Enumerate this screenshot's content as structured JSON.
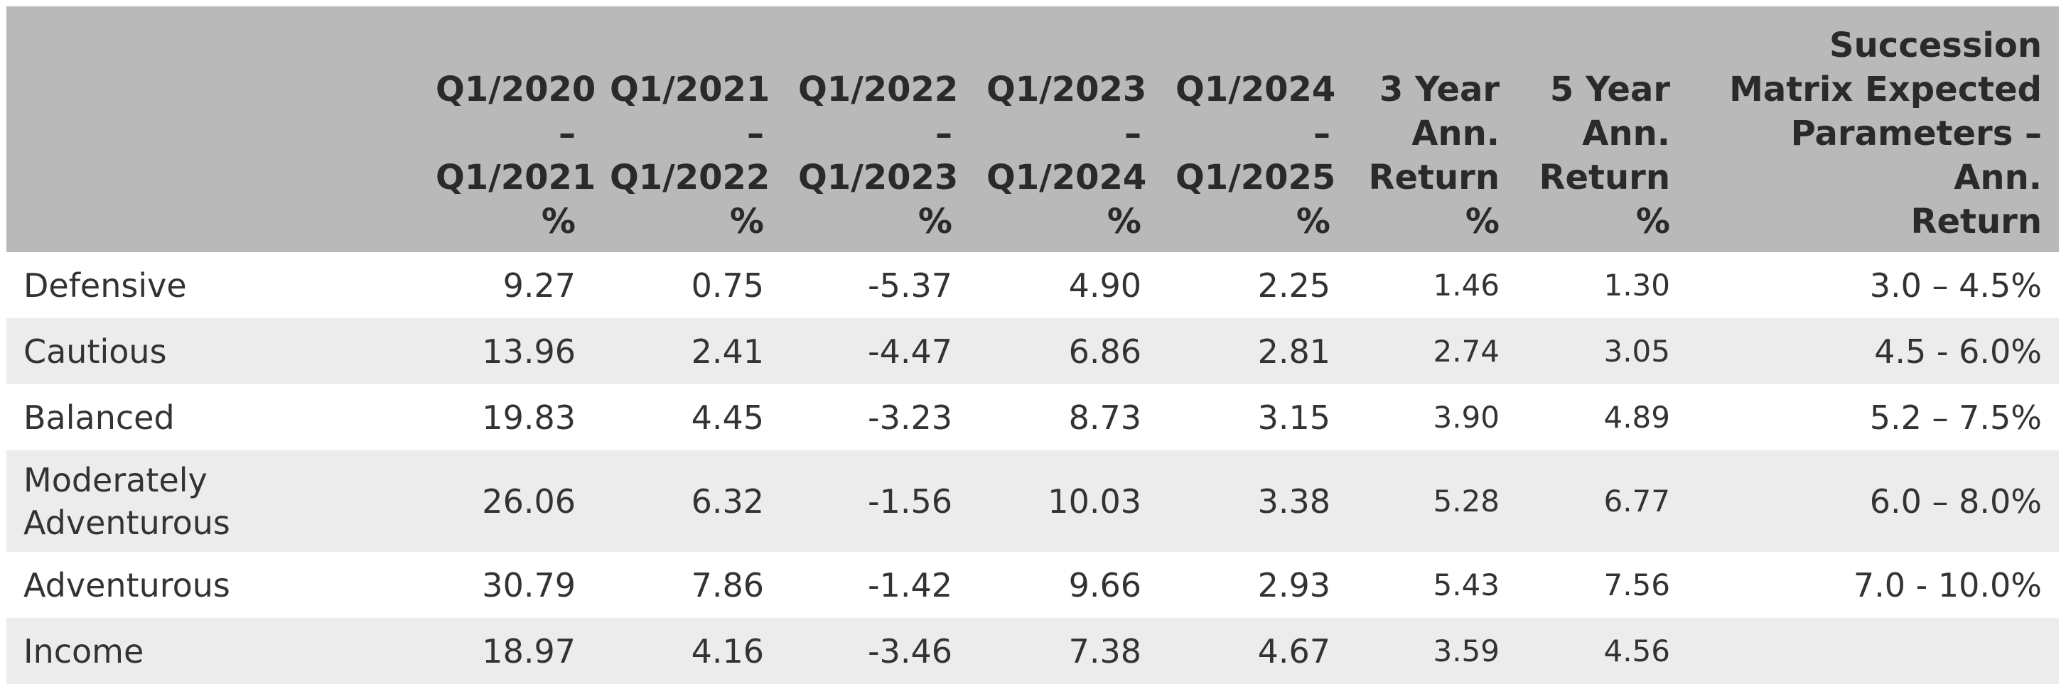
{
  "table": {
    "header": [
      [],
      [
        "Q1/2020",
        "–",
        "Q1/2021",
        "%"
      ],
      [
        "Q1/2021",
        "–",
        "Q1/2022",
        "%"
      ],
      [
        "Q1/2022",
        "–",
        "Q1/2023",
        "%"
      ],
      [
        "Q1/2023",
        "–",
        "Q1/2024",
        "%"
      ],
      [
        "Q1/2024",
        "–",
        "Q1/2025",
        "%"
      ],
      [
        "3 Year",
        "Ann.",
        "Return",
        "%"
      ],
      [
        "5 Year",
        "Ann.",
        "Return",
        "%"
      ],
      [
        "Succession",
        "Matrix Expected",
        "Parameters – Ann.",
        "Return"
      ]
    ],
    "rows": [
      [
        [
          "Defensive"
        ],
        "9.27",
        "0.75",
        "-5.37",
        "4.90",
        "2.25",
        "1.46",
        "1.30",
        "3.0 – 4.5%"
      ],
      [
        [
          "Cautious"
        ],
        "13.96",
        "2.41",
        "-4.47",
        "6.86",
        "2.81",
        "2.74",
        "3.05",
        "4.5 - 6.0%"
      ],
      [
        [
          "Balanced"
        ],
        "19.83",
        "4.45",
        "-3.23",
        "8.73",
        "3.15",
        "3.90",
        "4.89",
        "5.2 – 7.5%"
      ],
      [
        [
          "Moderately",
          "Adventurous"
        ],
        "26.06",
        "6.32",
        "-1.56",
        "10.03",
        "3.38",
        "5.28",
        "6.77",
        "6.0 – 8.0%"
      ],
      [
        [
          "Adventurous"
        ],
        "30.79",
        "7.86",
        "-1.42",
        "9.66",
        "2.93",
        "5.43",
        "7.56",
        "7.0 - 10.0%"
      ],
      [
        [
          "Income"
        ],
        "18.97",
        "4.16",
        "-3.46",
        "7.38",
        "4.67",
        "3.59",
        "4.56"
      ]
    ]
  }
}
